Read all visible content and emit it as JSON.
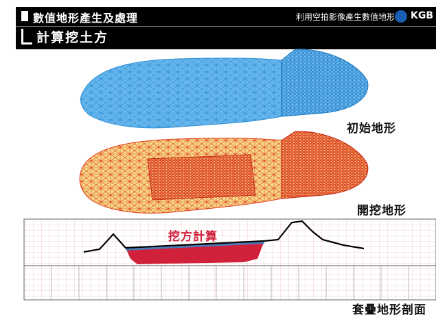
{
  "header": {
    "section_title": "數值地形產生及處理",
    "subtitle": "利用空拍影像產生數值地形",
    "logo": "KGB",
    "page_title": "計算挖土方"
  },
  "figure": {
    "label_initial": "初始地形",
    "label_excavated": "開挖地形",
    "label_cut": "挖方計算",
    "label_section": "套疊地形剖面",
    "colors": {
      "initial_mesh_fill": "#6ab8ee",
      "initial_mesh_line": "#2d8fd6",
      "excavated_fill": "#f5d986",
      "excavated_line": "#e23a1e",
      "cut_area": "#d0203a",
      "profile_line": "#000000",
      "grid_line": "#e08080"
    }
  }
}
